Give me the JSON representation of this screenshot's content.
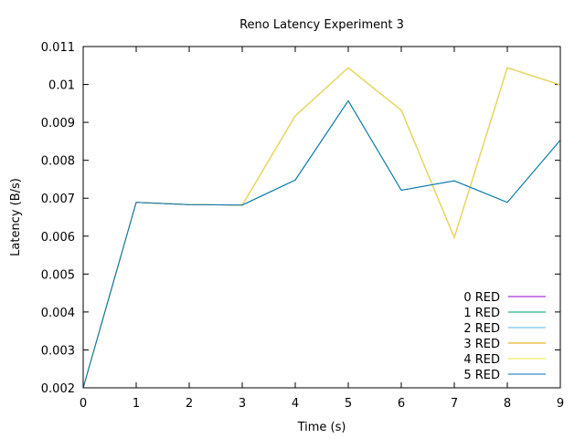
{
  "chart_data": {
    "type": "line",
    "title": "Reno Latency Experiment 3",
    "xlabel": "Time (s)",
    "ylabel": "Latency (B/s)",
    "xlim": [
      0,
      9
    ],
    "ylim": [
      0.002,
      0.011
    ],
    "x_ticks": [
      "0",
      "1",
      "2",
      "3",
      "4",
      "5",
      "6",
      "7",
      "8",
      "9"
    ],
    "y_ticks": [
      "0.002",
      "0.003",
      "0.004",
      "0.005",
      "0.006",
      "0.007",
      "0.008",
      "0.009",
      "0.01",
      "0.011"
    ],
    "grid": false,
    "legend_position": "bottom-right",
    "x": [
      0,
      1,
      2,
      3,
      4,
      5,
      6,
      7,
      8,
      9
    ],
    "series": [
      {
        "name": "0 RED",
        "color": "#9400d3",
        "values": [
          0.002,
          0.00689,
          0.00683,
          0.00682,
          0.00917,
          0.01044,
          0.00932,
          0.00596,
          0.01044,
          0.00999
        ]
      },
      {
        "name": "1 RED",
        "color": "#009e73",
        "values": [
          0.002,
          0.00689,
          0.00683,
          0.00682,
          0.00748,
          0.00957,
          0.00721,
          0.00746,
          0.00689,
          0.00853
        ]
      },
      {
        "name": "2 RED",
        "color": "#56b4e9",
        "values": [
          0.002,
          0.00689,
          0.00683,
          0.00682,
          0.00917,
          0.01044,
          0.00932,
          0.00596,
          0.01044,
          0.00999
        ]
      },
      {
        "name": "3 RED",
        "color": "#e69f00",
        "values": [
          0.002,
          0.00689,
          0.00683,
          0.00682,
          0.00917,
          0.01044,
          0.00932,
          0.00596,
          0.01044,
          0.00999
        ]
      },
      {
        "name": "4 RED",
        "color": "#f0e442",
        "values": [
          0.002,
          0.00689,
          0.00683,
          0.00682,
          0.00917,
          0.01044,
          0.00932,
          0.00596,
          0.01044,
          0.00999
        ]
      },
      {
        "name": "5 RED",
        "color": "#0072b2",
        "values": [
          0.002,
          0.00689,
          0.00683,
          0.00682,
          0.00748,
          0.00957,
          0.00721,
          0.00746,
          0.00689,
          0.00853
        ]
      }
    ]
  }
}
